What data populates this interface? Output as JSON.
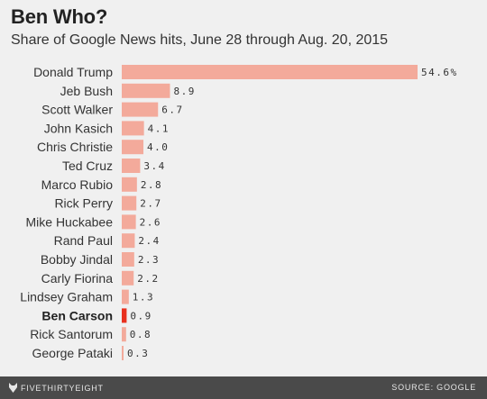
{
  "chart_data": {
    "type": "bar",
    "orientation": "horizontal",
    "title": "Ben Who?",
    "subtitle": "Share of Google News hits, June 28 through Aug. 20, 2015",
    "categories": [
      "Donald Trump",
      "Jeb Bush",
      "Scott Walker",
      "John Kasich",
      "Chris Christie",
      "Ted Cruz",
      "Marco Rubio",
      "Rick Perry",
      "Mike Huckabee",
      "Rand Paul",
      "Bobby Jindal",
      "Carly Fiorina",
      "Lindsey Graham",
      "Ben Carson",
      "Rick Santorum",
      "George Pataki"
    ],
    "values": [
      54.6,
      8.9,
      6.7,
      4.1,
      4.0,
      3.4,
      2.8,
      2.7,
      2.6,
      2.4,
      2.3,
      2.2,
      1.3,
      0.9,
      0.8,
      0.3
    ],
    "value_labels": [
      "54.6%",
      "8.9",
      "6.7",
      "4.1",
      "4.0",
      "3.4",
      "2.8",
      "2.7",
      "2.6",
      "2.4",
      "2.3",
      "2.2",
      "1.3",
      "0.9",
      "0.8",
      "0.3"
    ],
    "highlight": "Ben Carson",
    "colors": {
      "bar": "#f3aa9b",
      "highlight": "#e8301e"
    },
    "xlim": [
      0,
      54.6
    ],
    "grid": false,
    "legend": "none"
  },
  "footer": {
    "brand": "FIVETHIRTYEIGHT",
    "brand_icon": "fox-icon",
    "source": "SOURCE: GOOGLE"
  }
}
